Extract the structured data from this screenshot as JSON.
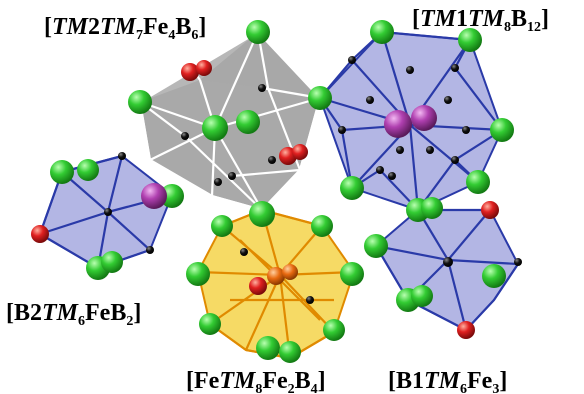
{
  "labels": {
    "tl": {
      "a": "[",
      "b": "TM",
      "c": "2",
      "d": "TM",
      "e": "7",
      "f": "Fe",
      "g": "4",
      "h": "B",
      "i": "6",
      "j": "]"
    },
    "tr": {
      "a": "[",
      "b": "TM",
      "c": "1",
      "d": "TM",
      "e": "8",
      "f": "B",
      "g": "12",
      "h": "]"
    },
    "ml": {
      "a": "[B2",
      "b": "TM",
      "c": "6",
      "d": "FeB",
      "e": "2",
      "f": "]"
    },
    "bc": {
      "a": "[Fe",
      "b": "TM",
      "c": "8",
      "d": "Fe",
      "e": "2",
      "f": "B",
      "g": "4",
      "h": "]"
    },
    "br": {
      "a": "[B1",
      "b": "TM",
      "c": "6",
      "d": "Fe",
      "e": "3",
      "f": "]"
    }
  },
  "colors": {
    "tm_atom": "#33cc33",
    "fe_atom": "#e02020",
    "b_atom": "#111111",
    "center_atom": "#b040b0",
    "gray_poly": "#9a9a9a",
    "blue_poly": "#8a8fd6",
    "yellow_poly": "#f4d44a",
    "blue_edge": "#2a3aa8",
    "yellow_edge": "#e08a00"
  }
}
